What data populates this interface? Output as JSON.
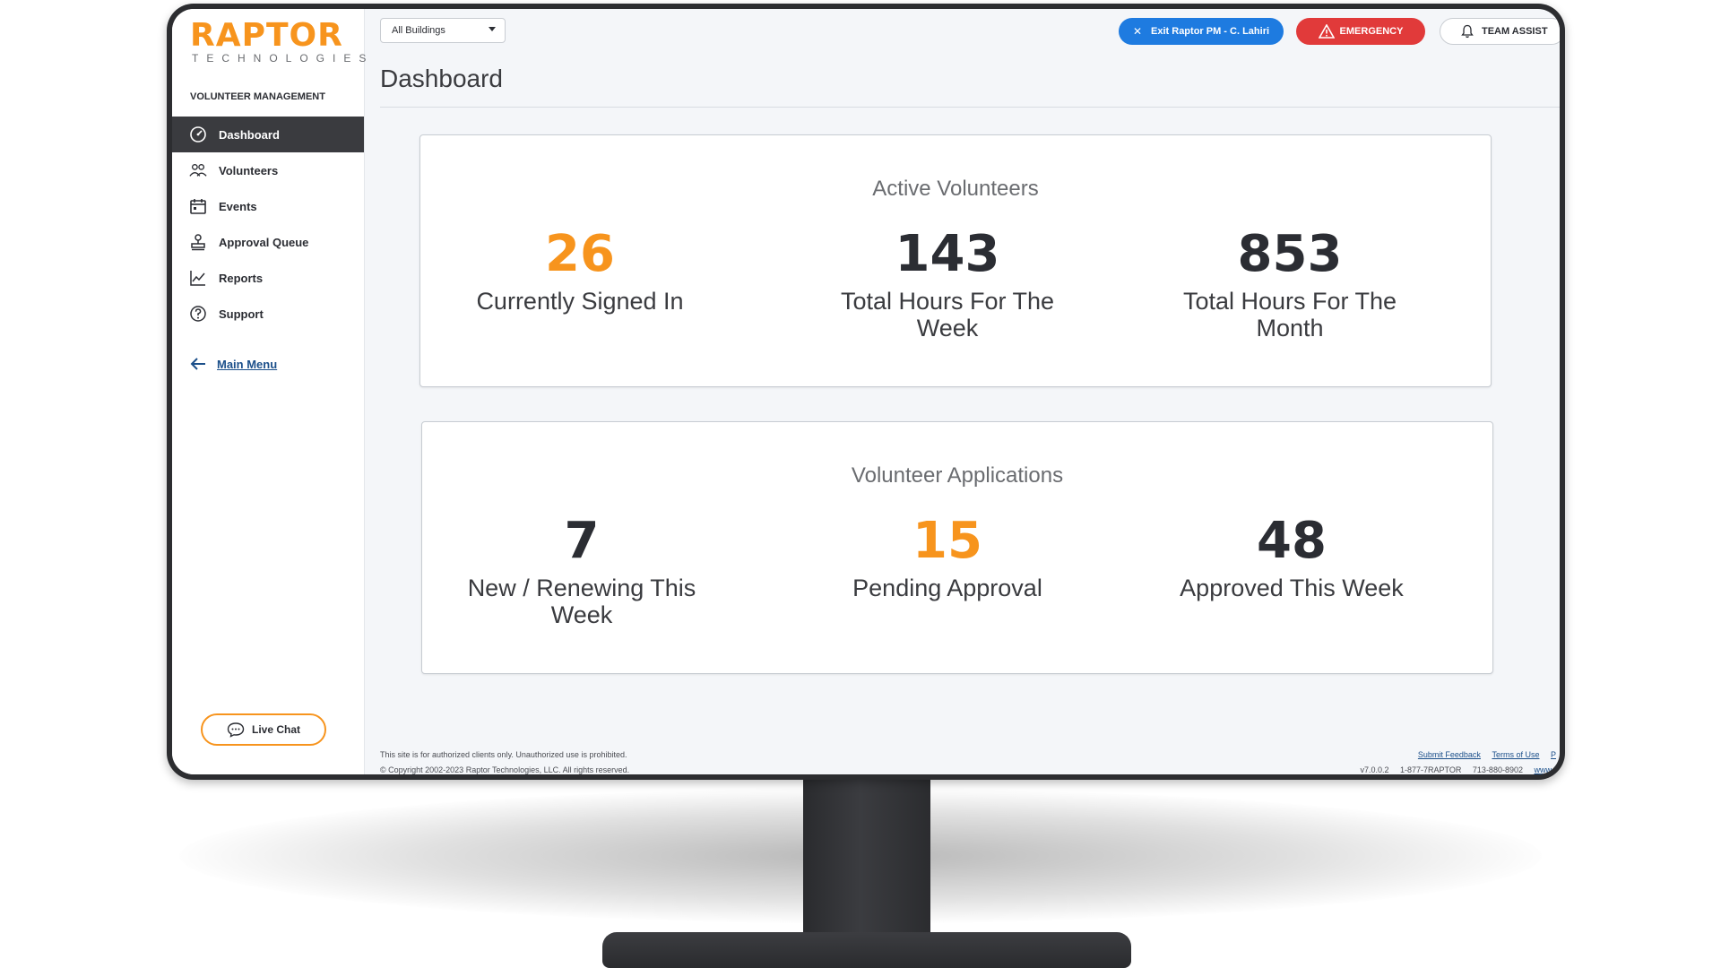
{
  "brand": {
    "name": "RAPTOR",
    "tagline": "TECHNOLOGIES",
    "accent_color": "#f7941d"
  },
  "sidebar": {
    "section_label": "VOLUNTEER MANAGEMENT",
    "items": [
      {
        "label": "Dashboard",
        "icon": "dashboard-gauge-icon",
        "active": true
      },
      {
        "label": "Volunteers",
        "icon": "users-group-icon",
        "active": false
      },
      {
        "label": "Events",
        "icon": "calendar-icon",
        "active": false
      },
      {
        "label": "Approval Queue",
        "icon": "stamp-icon",
        "active": false
      },
      {
        "label": "Reports",
        "icon": "line-chart-icon",
        "active": false
      },
      {
        "label": "Support",
        "icon": "question-circle-icon",
        "active": false
      }
    ],
    "main_menu_label": "Main Menu",
    "live_chat_label": "Live Chat"
  },
  "topbar": {
    "building_select": "All Buildings",
    "exit_button": "Exit Raptor PM - C. Lahiri",
    "emergency_button": "EMERGENCY",
    "team_assist_button": "TEAM ASSIST"
  },
  "page": {
    "title": "Dashboard"
  },
  "cards": {
    "active": {
      "title": "Active Volunteers",
      "stats": [
        {
          "value": "26",
          "label": "Currently Signed In",
          "highlight": true
        },
        {
          "value": "143",
          "label": "Total Hours For The Week",
          "highlight": false
        },
        {
          "value": "853",
          "label": "Total Hours For The Month",
          "highlight": false
        }
      ]
    },
    "applications": {
      "title": "Volunteer Applications",
      "stats": [
        {
          "value": "7",
          "label": "New / Renewing This Week",
          "highlight": false
        },
        {
          "value": "15",
          "label": "Pending Approval",
          "highlight": true
        },
        {
          "value": "48",
          "label": "Approved This Week",
          "highlight": false
        }
      ]
    }
  },
  "footer": {
    "notice": "This site is for authorized clients only. Unauthorized use is prohibited.",
    "copyright": "© Copyright 2002-2023 Raptor Technologies, LLC. All rights reserved.",
    "links": [
      "Submit Feedback",
      "Terms of Use",
      "P"
    ],
    "version": "v7.0.0.2",
    "phone_1": "1-877-7RAPTOR",
    "phone_2": "713-880-8902",
    "website": "www.r"
  }
}
